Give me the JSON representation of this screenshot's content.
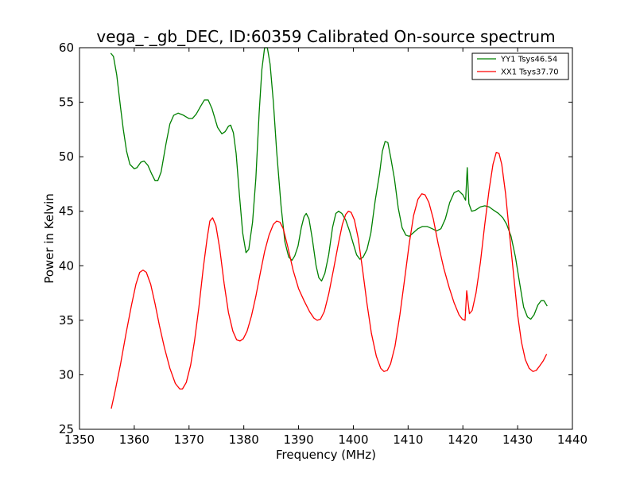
{
  "chart_data": {
    "type": "line",
    "title": "vega_-_gb_DEC, ID:60359 Calibrated On-source spectrum",
    "xlabel": "Frequency (MHz)",
    "ylabel": "Power in Kelvin",
    "xlim": [
      1350,
      1440
    ],
    "ylim": [
      25,
      60
    ],
    "xticks": [
      "1350",
      "1360",
      "1370",
      "1380",
      "1390",
      "1400",
      "1410",
      "1420",
      "1430",
      "1440"
    ],
    "yticks": [
      "25",
      "30",
      "35",
      "40",
      "45",
      "50",
      "55",
      "60"
    ],
    "legend_position": "top-right",
    "grid": false,
    "series": [
      {
        "name": "YY1 Tsys46.54",
        "color": "#008000",
        "points": [
          [
            1355.7,
            59.5
          ],
          [
            1356.2,
            59.2
          ],
          [
            1356.8,
            57.5
          ],
          [
            1357.5,
            54.5
          ],
          [
            1358.0,
            52.5
          ],
          [
            1358.6,
            50.5
          ],
          [
            1359.2,
            49.3
          ],
          [
            1360.0,
            48.9
          ],
          [
            1360.5,
            49.0
          ],
          [
            1361.2,
            49.5
          ],
          [
            1361.8,
            49.6
          ],
          [
            1362.5,
            49.2
          ],
          [
            1363.2,
            48.4
          ],
          [
            1363.8,
            47.8
          ],
          [
            1364.3,
            47.8
          ],
          [
            1364.9,
            48.6
          ],
          [
            1365.8,
            51.2
          ],
          [
            1366.5,
            53.0
          ],
          [
            1367.2,
            53.8
          ],
          [
            1368.0,
            54.0
          ],
          [
            1369.0,
            53.8
          ],
          [
            1370.0,
            53.5
          ],
          [
            1370.6,
            53.5
          ],
          [
            1371.3,
            53.9
          ],
          [
            1372.2,
            54.7
          ],
          [
            1372.8,
            55.2
          ],
          [
            1373.5,
            55.2
          ],
          [
            1374.2,
            54.4
          ],
          [
            1375.2,
            52.7
          ],
          [
            1376.0,
            52.1
          ],
          [
            1376.6,
            52.3
          ],
          [
            1377.2,
            52.8
          ],
          [
            1377.6,
            52.9
          ],
          [
            1378.1,
            52.2
          ],
          [
            1378.6,
            50.3
          ],
          [
            1379.2,
            46.5
          ],
          [
            1379.8,
            43.0
          ],
          [
            1380.4,
            41.2
          ],
          [
            1380.9,
            41.5
          ],
          [
            1381.6,
            44.0
          ],
          [
            1382.2,
            48.0
          ],
          [
            1382.8,
            54.0
          ],
          [
            1383.3,
            58.0
          ],
          [
            1383.8,
            60.0
          ],
          [
            1384.3,
            60.0
          ],
          [
            1384.8,
            58.5
          ],
          [
            1385.4,
            55.0
          ],
          [
            1386.0,
            50.5
          ],
          [
            1386.8,
            45.5
          ],
          [
            1387.5,
            42.2
          ],
          [
            1388.2,
            40.8
          ],
          [
            1388.8,
            40.5
          ],
          [
            1389.3,
            40.9
          ],
          [
            1389.9,
            41.8
          ],
          [
            1390.5,
            43.5
          ],
          [
            1391.0,
            44.5
          ],
          [
            1391.4,
            44.8
          ],
          [
            1391.9,
            44.3
          ],
          [
            1392.5,
            42.5
          ],
          [
            1393.2,
            40.0
          ],
          [
            1393.7,
            38.9
          ],
          [
            1394.2,
            38.6
          ],
          [
            1394.8,
            39.3
          ],
          [
            1395.5,
            41.0
          ],
          [
            1396.2,
            43.5
          ],
          [
            1396.8,
            44.8
          ],
          [
            1397.3,
            45.0
          ],
          [
            1397.9,
            44.8
          ],
          [
            1398.6,
            44.2
          ],
          [
            1399.3,
            43.2
          ],
          [
            1400.0,
            42.0
          ],
          [
            1400.6,
            41.0
          ],
          [
            1401.2,
            40.6
          ],
          [
            1401.8,
            40.8
          ],
          [
            1402.5,
            41.5
          ],
          [
            1403.2,
            43.0
          ],
          [
            1404.0,
            46.0
          ],
          [
            1404.8,
            48.5
          ],
          [
            1405.3,
            50.5
          ],
          [
            1405.8,
            51.4
          ],
          [
            1406.3,
            51.3
          ],
          [
            1406.8,
            50.0
          ],
          [
            1407.5,
            48.0
          ],
          [
            1408.2,
            45.3
          ],
          [
            1408.9,
            43.5
          ],
          [
            1409.6,
            42.8
          ],
          [
            1410.2,
            42.7
          ],
          [
            1410.9,
            43.0
          ],
          [
            1411.8,
            43.4
          ],
          [
            1412.6,
            43.6
          ],
          [
            1413.5,
            43.6
          ],
          [
            1414.4,
            43.4
          ],
          [
            1415.2,
            43.2
          ],
          [
            1416.0,
            43.4
          ],
          [
            1416.8,
            44.3
          ],
          [
            1417.6,
            45.8
          ],
          [
            1418.4,
            46.7
          ],
          [
            1419.2,
            46.9
          ],
          [
            1420.0,
            46.5
          ],
          [
            1420.5,
            46.0
          ],
          [
            1420.8,
            49.0
          ],
          [
            1421.1,
            45.7
          ],
          [
            1421.6,
            45.0
          ],
          [
            1422.3,
            45.1
          ],
          [
            1423.2,
            45.4
          ],
          [
            1424.0,
            45.5
          ],
          [
            1424.8,
            45.4
          ],
          [
            1425.6,
            45.1
          ],
          [
            1426.5,
            44.8
          ],
          [
            1427.3,
            44.4
          ],
          [
            1428.0,
            43.8
          ],
          [
            1428.8,
            42.7
          ],
          [
            1429.6,
            40.8
          ],
          [
            1430.4,
            38.3
          ],
          [
            1431.1,
            36.2
          ],
          [
            1431.8,
            35.3
          ],
          [
            1432.4,
            35.1
          ],
          [
            1433.0,
            35.5
          ],
          [
            1433.7,
            36.4
          ],
          [
            1434.3,
            36.8
          ],
          [
            1434.8,
            36.8
          ],
          [
            1435.4,
            36.3
          ]
        ]
      },
      {
        "name": "XX1 Tsys37.70",
        "color": "#ff0000",
        "points": [
          [
            1355.8,
            26.9
          ],
          [
            1356.5,
            28.5
          ],
          [
            1357.5,
            31.0
          ],
          [
            1358.5,
            33.8
          ],
          [
            1359.5,
            36.4
          ],
          [
            1360.3,
            38.3
          ],
          [
            1361.0,
            39.4
          ],
          [
            1361.6,
            39.6
          ],
          [
            1362.2,
            39.4
          ],
          [
            1363.0,
            38.3
          ],
          [
            1363.8,
            36.5
          ],
          [
            1364.6,
            34.5
          ],
          [
            1365.5,
            32.5
          ],
          [
            1366.5,
            30.6
          ],
          [
            1367.5,
            29.2
          ],
          [
            1368.3,
            28.7
          ],
          [
            1368.8,
            28.7
          ],
          [
            1369.5,
            29.3
          ],
          [
            1370.3,
            30.9
          ],
          [
            1371.0,
            33.1
          ],
          [
            1371.8,
            36.2
          ],
          [
            1372.6,
            39.8
          ],
          [
            1373.3,
            42.5
          ],
          [
            1373.8,
            44.1
          ],
          [
            1374.3,
            44.4
          ],
          [
            1374.9,
            43.7
          ],
          [
            1375.6,
            41.6
          ],
          [
            1376.4,
            38.4
          ],
          [
            1377.2,
            35.7
          ],
          [
            1378.0,
            34.0
          ],
          [
            1378.7,
            33.2
          ],
          [
            1379.3,
            33.1
          ],
          [
            1379.9,
            33.3
          ],
          [
            1380.6,
            34.0
          ],
          [
            1381.4,
            35.4
          ],
          [
            1382.2,
            37.2
          ],
          [
            1383.0,
            39.3
          ],
          [
            1383.8,
            41.3
          ],
          [
            1384.6,
            42.8
          ],
          [
            1385.4,
            43.8
          ],
          [
            1386.0,
            44.1
          ],
          [
            1386.6,
            44.0
          ],
          [
            1387.2,
            43.4
          ],
          [
            1388.0,
            41.8
          ],
          [
            1389.0,
            39.6
          ],
          [
            1390.0,
            37.9
          ],
          [
            1391.0,
            36.8
          ],
          [
            1392.0,
            35.8
          ],
          [
            1392.8,
            35.2
          ],
          [
            1393.4,
            35.0
          ],
          [
            1394.0,
            35.1
          ],
          [
            1394.7,
            35.8
          ],
          [
            1395.5,
            37.4
          ],
          [
            1396.4,
            39.7
          ],
          [
            1397.3,
            42.1
          ],
          [
            1398.0,
            43.8
          ],
          [
            1398.6,
            44.7
          ],
          [
            1399.1,
            45.0
          ],
          [
            1399.6,
            44.9
          ],
          [
            1400.2,
            44.2
          ],
          [
            1400.9,
            42.5
          ],
          [
            1401.7,
            39.6
          ],
          [
            1402.5,
            36.5
          ],
          [
            1403.3,
            33.8
          ],
          [
            1404.2,
            31.7
          ],
          [
            1405.0,
            30.6
          ],
          [
            1405.6,
            30.3
          ],
          [
            1406.2,
            30.4
          ],
          [
            1406.8,
            31.0
          ],
          [
            1407.6,
            32.6
          ],
          [
            1408.5,
            35.5
          ],
          [
            1409.4,
            38.9
          ],
          [
            1410.2,
            42.0
          ],
          [
            1411.0,
            44.6
          ],
          [
            1411.8,
            46.1
          ],
          [
            1412.5,
            46.6
          ],
          [
            1413.1,
            46.5
          ],
          [
            1413.8,
            45.8
          ],
          [
            1414.6,
            44.3
          ],
          [
            1415.5,
            42.0
          ],
          [
            1416.5,
            39.8
          ],
          [
            1417.5,
            38.0
          ],
          [
            1418.4,
            36.6
          ],
          [
            1419.3,
            35.5
          ],
          [
            1419.9,
            35.1
          ],
          [
            1420.4,
            35.0
          ],
          [
            1420.7,
            37.7
          ],
          [
            1421.2,
            35.6
          ],
          [
            1421.7,
            35.9
          ],
          [
            1422.4,
            37.5
          ],
          [
            1423.2,
            40.3
          ],
          [
            1424.0,
            43.8
          ],
          [
            1424.8,
            47.0
          ],
          [
            1425.5,
            49.3
          ],
          [
            1426.1,
            50.4
          ],
          [
            1426.6,
            50.3
          ],
          [
            1427.1,
            49.3
          ],
          [
            1427.8,
            46.6
          ],
          [
            1428.5,
            43.0
          ],
          [
            1429.3,
            39.0
          ],
          [
            1430.0,
            35.5
          ],
          [
            1430.7,
            33.0
          ],
          [
            1431.4,
            31.4
          ],
          [
            1432.1,
            30.6
          ],
          [
            1432.8,
            30.3
          ],
          [
            1433.4,
            30.4
          ],
          [
            1434.0,
            30.8
          ],
          [
            1434.7,
            31.3
          ],
          [
            1435.3,
            31.9
          ]
        ]
      }
    ]
  }
}
